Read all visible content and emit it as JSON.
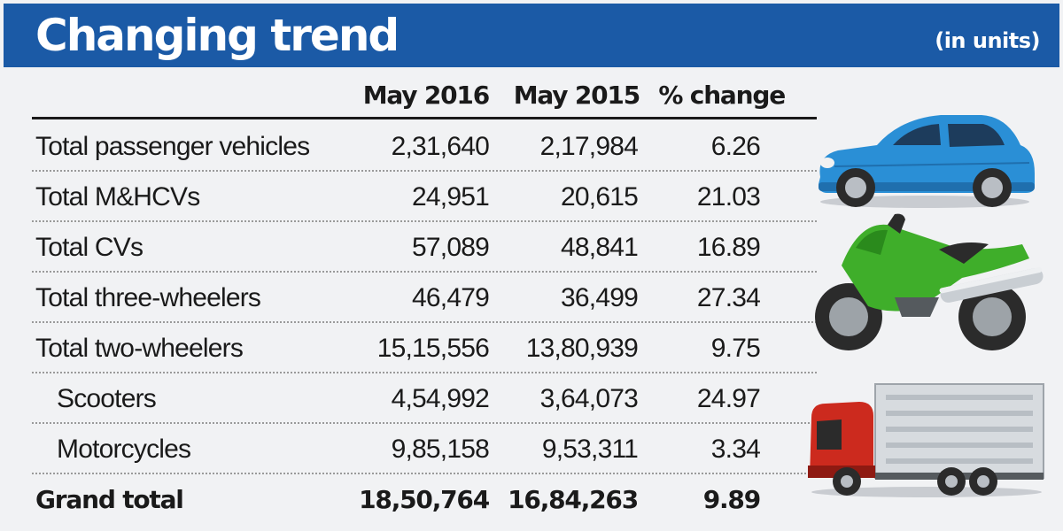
{
  "header": {
    "title": "Changing trend",
    "units": "(in units)"
  },
  "chart_data": {
    "type": "table",
    "title": "Changing trend",
    "subtitle": "(in units)",
    "columns": [
      "May 2016",
      "May 2015",
      "% change"
    ],
    "rows": [
      {
        "label": "Total passenger vehicles",
        "values": [
          "2,31,640",
          "2,17,984",
          "6.26"
        ],
        "indent": false,
        "bold": false
      },
      {
        "label": "Total M&HCVs",
        "values": [
          "24,951",
          "20,615",
          "21.03"
        ],
        "indent": false,
        "bold": false
      },
      {
        "label": "Total CVs",
        "values": [
          "57,089",
          "48,841",
          "16.89"
        ],
        "indent": false,
        "bold": false
      },
      {
        "label": "Total three-wheelers",
        "values": [
          "46,479",
          "36,499",
          "27.34"
        ],
        "indent": false,
        "bold": false
      },
      {
        "label": "Total two-wheelers",
        "values": [
          "15,15,556",
          "13,80,939",
          "9.75"
        ],
        "indent": false,
        "bold": false
      },
      {
        "label": "Scooters",
        "values": [
          "4,54,992",
          "3,64,073",
          "24.97"
        ],
        "indent": true,
        "bold": false
      },
      {
        "label": "Motorcycles",
        "values": [
          "9,85,158",
          "9,53,311",
          "3.34"
        ],
        "indent": true,
        "bold": false
      },
      {
        "label": "Grand total",
        "values": [
          "18,50,764",
          "16,84,263",
          "9.89"
        ],
        "indent": false,
        "bold": true
      }
    ]
  },
  "colors": {
    "header_bg": "#1b5aa6",
    "page_bg": "#f1f2f4",
    "text": "#1a1a1a",
    "car": "#2a8fd6",
    "motorcycle": "#3fae2a",
    "truck_cab": "#cc2a1e"
  },
  "illustrations": [
    "car-icon",
    "motorcycle-icon",
    "truck-icon"
  ]
}
